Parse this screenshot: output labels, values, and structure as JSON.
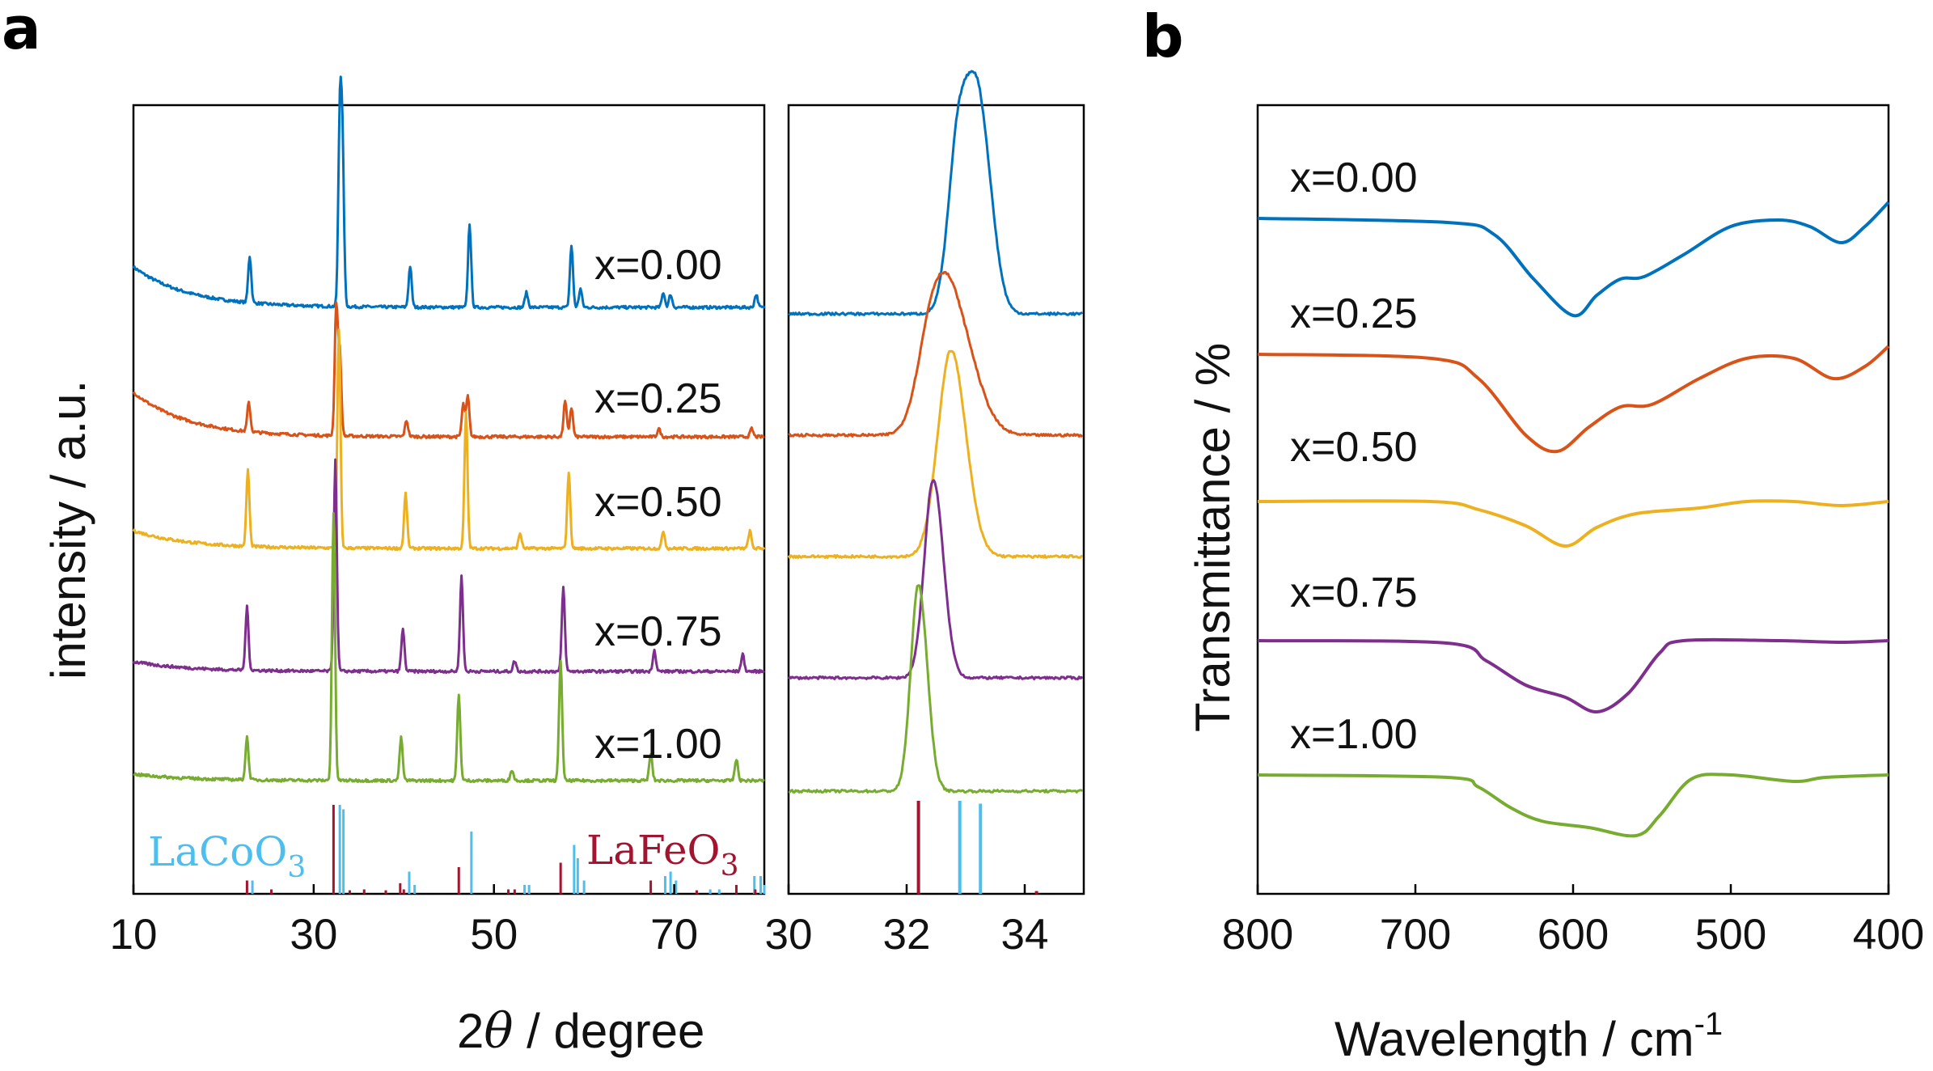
{
  "chart_data": [
    {
      "panel": "a",
      "type": "line",
      "xlabel": "2θ / degree",
      "ylabel": "intensity / a.u.",
      "xlim": [
        10,
        80
      ],
      "x_ticks": [
        "10",
        "30",
        "50",
        "70"
      ],
      "series": [
        {
          "name": "x=0.00",
          "color": "#0072BD",
          "peaks": [
            [
              22.9,
              0.25
            ],
            [
              32.9,
              1.0
            ],
            [
              33.2,
              0.8
            ],
            [
              40.7,
              0.22
            ],
            [
              47.3,
              0.45
            ],
            [
              53.6,
              0.08
            ],
            [
              58.6,
              0.33
            ],
            [
              59.6,
              0.1
            ],
            [
              68.8,
              0.08
            ],
            [
              69.6,
              0.07
            ],
            [
              79.1,
              0.07
            ]
          ]
        },
        {
          "name": "x=0.25",
          "color": "#D95319",
          "peaks": [
            [
              22.8,
              0.18
            ],
            [
              32.5,
              0.8
            ],
            [
              32.9,
              0.5
            ],
            [
              40.3,
              0.1
            ],
            [
              46.6,
              0.2
            ],
            [
              47.1,
              0.25
            ],
            [
              57.9,
              0.22
            ],
            [
              58.6,
              0.18
            ],
            [
              68.3,
              0.05
            ],
            [
              78.6,
              0.05
            ]
          ]
        },
        {
          "name": "x=0.50",
          "color": "#EDB120",
          "peaks": [
            [
              22.7,
              0.35
            ],
            [
              32.8,
              1.0
            ],
            [
              40.2,
              0.25
            ],
            [
              46.9,
              0.62
            ],
            [
              52.9,
              0.07
            ],
            [
              58.3,
              0.35
            ],
            [
              68.8,
              0.08
            ],
            [
              78.4,
              0.08
            ]
          ]
        },
        {
          "name": "x=0.75",
          "color": "#7E2F8E",
          "peaks": [
            [
              22.6,
              0.3
            ],
            [
              32.4,
              1.0
            ],
            [
              39.9,
              0.2
            ],
            [
              46.4,
              0.45
            ],
            [
              52.3,
              0.05
            ],
            [
              57.7,
              0.4
            ],
            [
              67.8,
              0.1
            ],
            [
              77.6,
              0.08
            ]
          ]
        },
        {
          "name": "x=1.00",
          "color": "#77AC30",
          "peaks": [
            [
              22.6,
              0.16
            ],
            [
              32.2,
              1.0
            ],
            [
              39.7,
              0.16
            ],
            [
              46.1,
              0.32
            ],
            [
              52.0,
              0.04
            ],
            [
              57.4,
              0.45
            ],
            [
              67.4,
              0.1
            ],
            [
              76.9,
              0.08
            ]
          ]
        }
      ],
      "reference": [
        {
          "name": "LaCoO3",
          "name_main": "LaCoO",
          "name_sub": "3",
          "color": "#4DBEEE",
          "lines": [
            [
              23.2,
              0.15
            ],
            [
              32.9,
              1.0
            ],
            [
              33.3,
              0.95
            ],
            [
              40.6,
              0.25
            ],
            [
              41.2,
              0.1
            ],
            [
              47.5,
              0.7
            ],
            [
              53.4,
              0.1
            ],
            [
              53.9,
              0.1
            ],
            [
              58.9,
              0.55
            ],
            [
              59.3,
              0.4
            ],
            [
              60.0,
              0.15
            ],
            [
              69.0,
              0.2
            ],
            [
              69.6,
              0.25
            ],
            [
              70.2,
              0.15
            ],
            [
              74.0,
              0.05
            ],
            [
              75.0,
              0.05
            ],
            [
              78.9,
              0.2
            ],
            [
              79.6,
              0.2
            ],
            [
              80.0,
              0.1
            ]
          ]
        },
        {
          "name": "LaFeO3",
          "name_main": "LaFeO",
          "name_sub": "3",
          "color": "#A2142F",
          "lines": [
            [
              22.6,
              0.15
            ],
            [
              25.3,
              0.05
            ],
            [
              32.2,
              1.0
            ],
            [
              34.0,
              0.04
            ],
            [
              35.6,
              0.05
            ],
            [
              38.0,
              0.04
            ],
            [
              39.6,
              0.12
            ],
            [
              40.0,
              0.05
            ],
            [
              46.1,
              0.3
            ],
            [
              51.6,
              0.05
            ],
            [
              52.3,
              0.05
            ],
            [
              57.4,
              0.35
            ],
            [
              67.4,
              0.15
            ],
            [
              72.5,
              0.04
            ],
            [
              76.9,
              0.1
            ],
            [
              79.0,
              0.05
            ]
          ]
        }
      ]
    },
    {
      "panel": "a-inset",
      "type": "line",
      "xlim": [
        30,
        35
      ],
      "x_ticks": [
        "30",
        "32",
        "34"
      ],
      "series": [
        {
          "name": "x=0.00",
          "color": "#0072BD",
          "peaks": [
            [
              32.9,
              1.0,
              0.18
            ],
            [
              33.25,
              0.92,
              0.18
            ]
          ]
        },
        {
          "name": "x=0.25",
          "color": "#D95319",
          "peaks": [
            [
              32.45,
              0.9,
              0.25
            ],
            [
              32.85,
              0.85,
              0.3
            ]
          ]
        },
        {
          "name": "x=0.50",
          "color": "#EDB120",
          "peaks": [
            [
              32.75,
              1.0,
              0.22
            ]
          ]
        },
        {
          "name": "x=0.75",
          "color": "#7E2F8E",
          "peaks": [
            [
              32.45,
              1.0,
              0.15
            ]
          ]
        },
        {
          "name": "x=1.00",
          "color": "#77AC30",
          "peaks": [
            [
              32.2,
              1.0,
              0.13
            ]
          ]
        }
      ],
      "reference": [
        {
          "name": "LaCoO3",
          "color": "#4DBEEE",
          "lines": [
            [
              32.9,
              1.0
            ],
            [
              33.25,
              0.97
            ]
          ]
        },
        {
          "name": "LaFeO3",
          "color": "#A2142F",
          "lines": [
            [
              32.2,
              1.0
            ],
            [
              34.2,
              0.03
            ]
          ]
        }
      ]
    },
    {
      "panel": "b",
      "type": "line",
      "xlabel_main": "Wavelength / cm",
      "xlabel_sup": "-1",
      "ylabel": "Transmittance / %",
      "xlim": [
        800,
        400
      ],
      "x_ticks": [
        "800",
        "700",
        "600",
        "500",
        "400"
      ],
      "series": [
        {
          "name": "x=0.00",
          "color": "#0072BD",
          "points": [
            [
              800,
              0
            ],
            [
              680,
              -5
            ],
            [
              650,
              -20
            ],
            [
              625,
              -75
            ],
            [
              600,
              -120
            ],
            [
              585,
              -95
            ],
            [
              570,
              -75
            ],
            [
              555,
              -72
            ],
            [
              530,
              -45
            ],
            [
              500,
              -10
            ],
            [
              470,
              -2
            ],
            [
              450,
              -10
            ],
            [
              430,
              -30
            ],
            [
              415,
              -10
            ],
            [
              400,
              20
            ]
          ]
        },
        {
          "name": "x=0.25",
          "color": "#D95319",
          "points": [
            [
              800,
              0
            ],
            [
              690,
              -5
            ],
            [
              660,
              -30
            ],
            [
              630,
              -100
            ],
            [
              610,
              -120
            ],
            [
              590,
              -90
            ],
            [
              570,
              -65
            ],
            [
              550,
              -62
            ],
            [
              520,
              -30
            ],
            [
              490,
              -5
            ],
            [
              460,
              -5
            ],
            [
              435,
              -30
            ],
            [
              415,
              -15
            ],
            [
              400,
              10
            ]
          ]
        },
        {
          "name": "x=0.50",
          "color": "#EDB120",
          "points": [
            [
              800,
              0
            ],
            [
              690,
              0
            ],
            [
              660,
              -10
            ],
            [
              630,
              -30
            ],
            [
              605,
              -55
            ],
            [
              585,
              -32
            ],
            [
              560,
              -15
            ],
            [
              520,
              -8
            ],
            [
              490,
              0
            ],
            [
              460,
              0
            ],
            [
              430,
              -5
            ],
            [
              400,
              0
            ]
          ]
        },
        {
          "name": "x=0.75",
          "color": "#7E2F8E",
          "points": [
            [
              800,
              0
            ],
            [
              680,
              -3
            ],
            [
              655,
              -25
            ],
            [
              630,
              -55
            ],
            [
              605,
              -70
            ],
            [
              585,
              -88
            ],
            [
              565,
              -65
            ],
            [
              545,
              -15
            ],
            [
              530,
              0
            ],
            [
              470,
              0
            ],
            [
              430,
              -2
            ],
            [
              400,
              0
            ]
          ]
        },
        {
          "name": "x=1.00",
          "color": "#77AC30",
          "points": [
            [
              800,
              0
            ],
            [
              680,
              -3
            ],
            [
              660,
              -15
            ],
            [
              640,
              -40
            ],
            [
              620,
              -57
            ],
            [
              590,
              -65
            ],
            [
              560,
              -75
            ],
            [
              545,
              -50
            ],
            [
              525,
              -5
            ],
            [
              500,
              0
            ],
            [
              460,
              -8
            ],
            [
              440,
              -3
            ],
            [
              400,
              0
            ]
          ]
        }
      ]
    }
  ],
  "panel_labels": {
    "a": "a",
    "b": "b"
  },
  "panel_a": {
    "xlabel_main": "2",
    "xlabel_theta": "θ",
    "xlabel_rest": " / degree",
    "ylabel": "intensity / a.u.",
    "x_ticks": [
      "10",
      "30",
      "50",
      "70"
    ],
    "inset_x_ticks": [
      "30",
      "32",
      "34"
    ],
    "series_labels": [
      "x=0.00",
      "x=0.25",
      "x=0.50",
      "x=0.75",
      "x=1.00"
    ],
    "ref_lacoo_main": "LaCoO",
    "ref_lacoo_sub": "3",
    "ref_lafeo_main": "LaFeO",
    "ref_lafeo_sub": "3"
  },
  "panel_b": {
    "ylabel": "Transmittance / %",
    "xlabel_main": "Wavelength / cm",
    "xlabel_sup": "-1",
    "x_ticks": [
      "800",
      "700",
      "600",
      "500",
      "400"
    ],
    "series_labels": [
      "x=0.00",
      "x=0.25",
      "x=0.50",
      "x=0.75",
      "x=1.00"
    ]
  },
  "colors": {
    "x000": "#0072BD",
    "x025": "#D95319",
    "x050": "#EDB120",
    "x075": "#7E2F8E",
    "x100": "#77AC30",
    "lacoo3": "#4DBEEE",
    "lafeo3": "#A2142F"
  }
}
